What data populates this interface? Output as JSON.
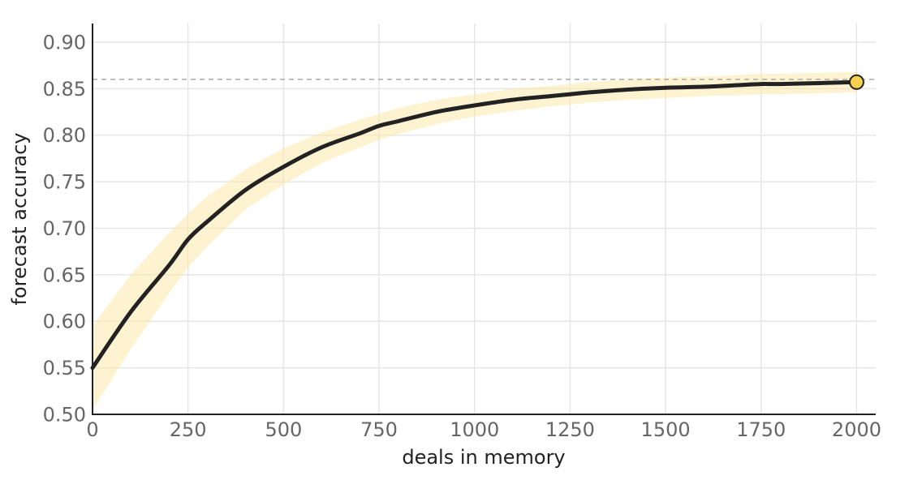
{
  "chart_data": {
    "type": "line",
    "xlabel": "deals in memory",
    "ylabel": "forecast accuracy",
    "xlim": [
      0,
      2050
    ],
    "ylim": [
      0.5,
      0.92
    ],
    "x_ticks": [
      0,
      250,
      500,
      750,
      1000,
      1250,
      1500,
      1750,
      2000
    ],
    "x_tick_labels": [
      "0",
      "250",
      "500",
      "750",
      "1000",
      "1250",
      "1500",
      "1750",
      "2000"
    ],
    "y_ticks": [
      0.5,
      0.55,
      0.6,
      0.65,
      0.7,
      0.75,
      0.8,
      0.85,
      0.9
    ],
    "y_tick_labels": [
      "0.50",
      "0.55",
      "0.60",
      "0.65",
      "0.70",
      "0.75",
      "0.80",
      "0.85",
      "0.90"
    ],
    "grid": true,
    "reference_line_y": 0.86,
    "series": [
      {
        "color": "#222222",
        "x": [
          0,
          100,
          200,
          250,
          300,
          400,
          500,
          600,
          700,
          750,
          800,
          900,
          1000,
          1100,
          1200,
          1250,
          1300,
          1400,
          1500,
          1600,
          1700,
          1750,
          1800,
          1900,
          2000
        ],
        "y": [
          0.55,
          0.61,
          0.66,
          0.688,
          0.707,
          0.741,
          0.766,
          0.787,
          0.802,
          0.81,
          0.815,
          0.825,
          0.832,
          0.838,
          0.842,
          0.844,
          0.846,
          0.849,
          0.851,
          0.852,
          0.854,
          0.855,
          0.855,
          0.856,
          0.857
        ]
      }
    ],
    "band": {
      "color": "#fbe7a1",
      "x": [
        0,
        100,
        200,
        250,
        300,
        400,
        500,
        600,
        700,
        750,
        800,
        900,
        1000,
        1100,
        1200,
        1250,
        1300,
        1400,
        1500,
        1600,
        1700,
        1750,
        1800,
        1900,
        2000
      ],
      "lower": [
        0.505,
        0.57,
        0.63,
        0.658,
        0.68,
        0.72,
        0.747,
        0.77,
        0.787,
        0.795,
        0.801,
        0.812,
        0.82,
        0.826,
        0.831,
        0.833,
        0.835,
        0.838,
        0.84,
        0.842,
        0.843,
        0.844,
        0.844,
        0.845,
        0.846
      ],
      "upper": [
        0.595,
        0.65,
        0.695,
        0.716,
        0.734,
        0.763,
        0.786,
        0.803,
        0.817,
        0.823,
        0.829,
        0.838,
        0.844,
        0.85,
        0.853,
        0.855,
        0.857,
        0.86,
        0.862,
        0.863,
        0.865,
        0.866,
        0.866,
        0.867,
        0.868
      ]
    },
    "end_marker": {
      "x": 2000,
      "y": 0.857,
      "color": "#f5d14f"
    }
  }
}
